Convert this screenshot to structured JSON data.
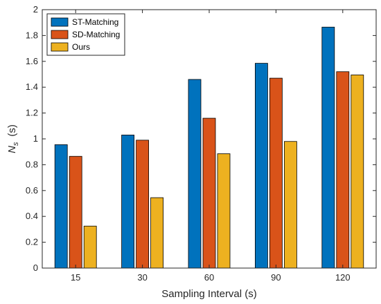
{
  "chart_data": {
    "type": "bar",
    "categories": [
      "15",
      "30",
      "60",
      "90",
      "120"
    ],
    "series": [
      {
        "name": "ST-Matching",
        "color": "#0072BD",
        "values": [
          0.955,
          1.03,
          1.46,
          1.585,
          1.865
        ]
      },
      {
        "name": "SD-Matching",
        "color": "#D95319",
        "values": [
          0.865,
          0.99,
          1.16,
          1.47,
          1.52
        ]
      },
      {
        "name": "Ours",
        "color": "#EDB120",
        "values": [
          0.325,
          0.545,
          0.885,
          0.98,
          1.495
        ]
      }
    ],
    "xlabel": "Sampling Interval (s)",
    "ylabel_main": "N",
    "ylabel_sub": "s",
    "ylabel_unit": "(s)",
    "ylim": [
      0,
      2
    ],
    "yticks": [
      "0",
      "0.2",
      "0.4",
      "0.6",
      "0.8",
      "1",
      "1.2",
      "1.4",
      "1.6",
      "1.8",
      "2"
    ],
    "grid": false,
    "legend_position": "top-left"
  }
}
